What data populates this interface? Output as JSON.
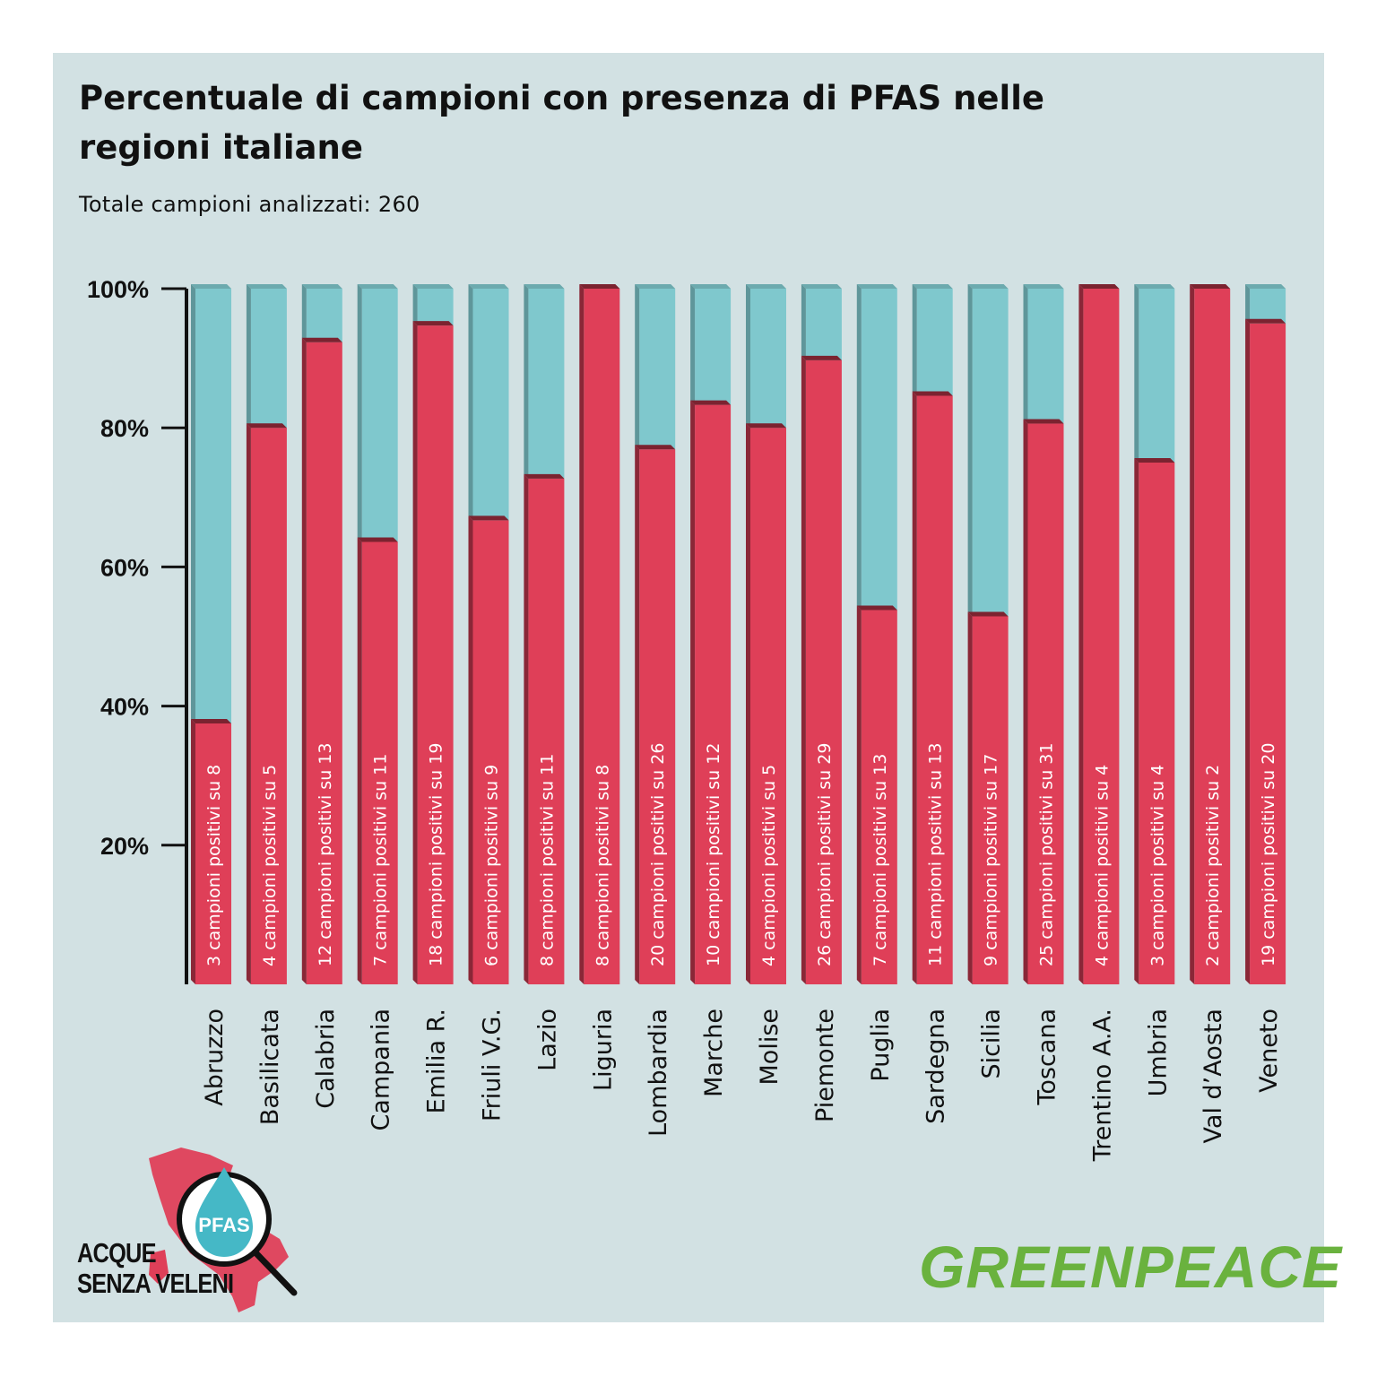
{
  "title": "Percentuale di campioni con presenza di PFAS nelle regioni italiane",
  "subtitle": "Totale campioni analizzati: 260",
  "colors": {
    "background": "#d2e1e3",
    "positive": "#df3f58",
    "remaining": "#7fc8cd",
    "brand": "#6ab23e"
  },
  "chart_data": {
    "type": "bar",
    "stacked": true,
    "title": "Percentuale di campioni con presenza di PFAS nelle regioni italiane",
    "subtitle": "Totale campioni analizzati: 260",
    "ylim": [
      0,
      100
    ],
    "yticks": [
      20,
      40,
      60,
      80,
      100
    ],
    "ytick_labels": [
      "20%",
      "40%",
      "60%",
      "80%",
      "100%"
    ],
    "grid": false,
    "categories": [
      "Abruzzo",
      "Basilicata",
      "Calabria",
      "Campania",
      "Emilia R.",
      "Friuli V.G.",
      "Lazio",
      "Liguria",
      "Lombardia",
      "Marche",
      "Molise",
      "Piemonte",
      "Puglia",
      "Sardegna",
      "Sicilia",
      "Toscana",
      "Trentino A.A.",
      "Umbria",
      "Val d’Aosta",
      "Veneto"
    ],
    "series": [
      {
        "values": [
          37.5,
          80,
          92.3,
          63.6,
          94.7,
          66.7,
          72.7,
          100,
          76.9,
          83.3,
          80,
          89.7,
          53.8,
          84.6,
          52.9,
          80.6,
          100,
          75,
          100,
          95
        ]
      },
      {
        "values": [
          62.5,
          20,
          7.7,
          36.4,
          5.3,
          33.3,
          27.3,
          0,
          23.1,
          16.7,
          20,
          10.3,
          46.2,
          15.4,
          47.1,
          19.4,
          0,
          25,
          0,
          5
        ]
      }
    ],
    "bar_labels": [
      "3 campioni positivi su 8",
      "4 campioni positivi su 5",
      "12 campioni positivi su 13",
      "7 campioni positivi su 11",
      "18 campioni positivi su 19",
      "6 campioni positivi su 9",
      "8 campioni positivi su 11",
      "8 campioni positivi su 8",
      "20 campioni positivi su 26",
      "10 campioni positivi su 12",
      "4 campioni positivi su 5",
      "26 campioni positivi su 29",
      "7 campioni positivi su 13",
      "11 campioni positivi su 13",
      "9 campioni positivi su 17",
      "25 campioni positivi su 31",
      "4 campioni positivi su 4",
      "3 campioni positivi su 4",
      "2 campioni positivi su 2",
      "19 campioni positivi su 20"
    ]
  },
  "logo_left": {
    "text_line1": "ACQUE",
    "text_line2": "SENZA VELENI",
    "badge": "PFAS"
  },
  "brand": "GREENPEACE"
}
